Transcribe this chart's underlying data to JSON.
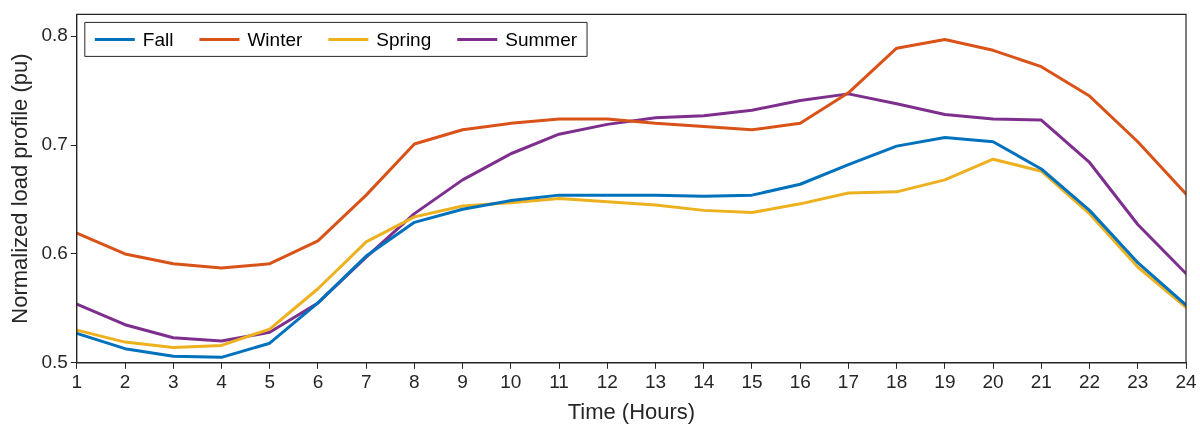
{
  "chart_data": {
    "type": "line",
    "xlabel": "Time (Hours)",
    "ylabel": "Normalized load profile (pu)",
    "x": [
      1,
      2,
      3,
      4,
      5,
      6,
      7,
      8,
      9,
      10,
      11,
      12,
      13,
      14,
      15,
      16,
      17,
      18,
      19,
      20,
      21,
      22,
      23,
      24
    ],
    "series": [
      {
        "name": "Fall",
        "color": "#0072bd",
        "values": [
          0.527,
          0.513,
          0.506,
          0.505,
          0.518,
          0.555,
          0.598,
          0.629,
          0.641,
          0.649,
          0.654,
          0.654,
          0.654,
          0.653,
          0.654,
          0.664,
          0.682,
          0.699,
          0.707,
          0.703,
          0.678,
          0.64,
          0.592,
          0.553
        ]
      },
      {
        "name": "Winter",
        "color": "#d95319",
        "values": [
          0.619,
          0.6,
          0.591,
          0.587,
          0.591,
          0.612,
          0.654,
          0.701,
          0.714,
          0.72,
          0.724,
          0.724,
          0.72,
          0.717,
          0.714,
          0.72,
          0.748,
          0.789,
          0.797,
          0.787,
          0.772,
          0.745,
          0.703,
          0.655
        ]
      },
      {
        "name": "Spring",
        "color": "#edb120",
        "values": [
          0.53,
          0.519,
          0.514,
          0.516,
          0.531,
          0.568,
          0.611,
          0.634,
          0.644,
          0.647,
          0.651,
          0.648,
          0.645,
          0.64,
          0.638,
          0.646,
          0.656,
          0.657,
          0.668,
          0.687,
          0.676,
          0.637,
          0.588,
          0.551
        ]
      },
      {
        "name": "Summer",
        "color": "#7e2f8e",
        "values": [
          0.554,
          0.535,
          0.523,
          0.52,
          0.528,
          0.555,
          0.597,
          0.637,
          0.668,
          0.692,
          0.71,
          0.719,
          0.725,
          0.727,
          0.732,
          0.741,
          0.747,
          0.738,
          0.728,
          0.724,
          0.723,
          0.684,
          0.627,
          0.582
        ]
      }
    ],
    "xlim": [
      1,
      24
    ],
    "xticks": [
      1,
      2,
      3,
      4,
      5,
      6,
      7,
      8,
      9,
      10,
      11,
      12,
      13,
      14,
      15,
      16,
      17,
      18,
      19,
      20,
      21,
      22,
      23,
      24
    ],
    "ylim": [
      0.5,
      0.82
    ],
    "yticks": [
      0.5,
      0.6,
      0.7,
      0.8
    ],
    "grid": false,
    "legend": "top left",
    "marker": "none",
    "line_style": "solid"
  }
}
